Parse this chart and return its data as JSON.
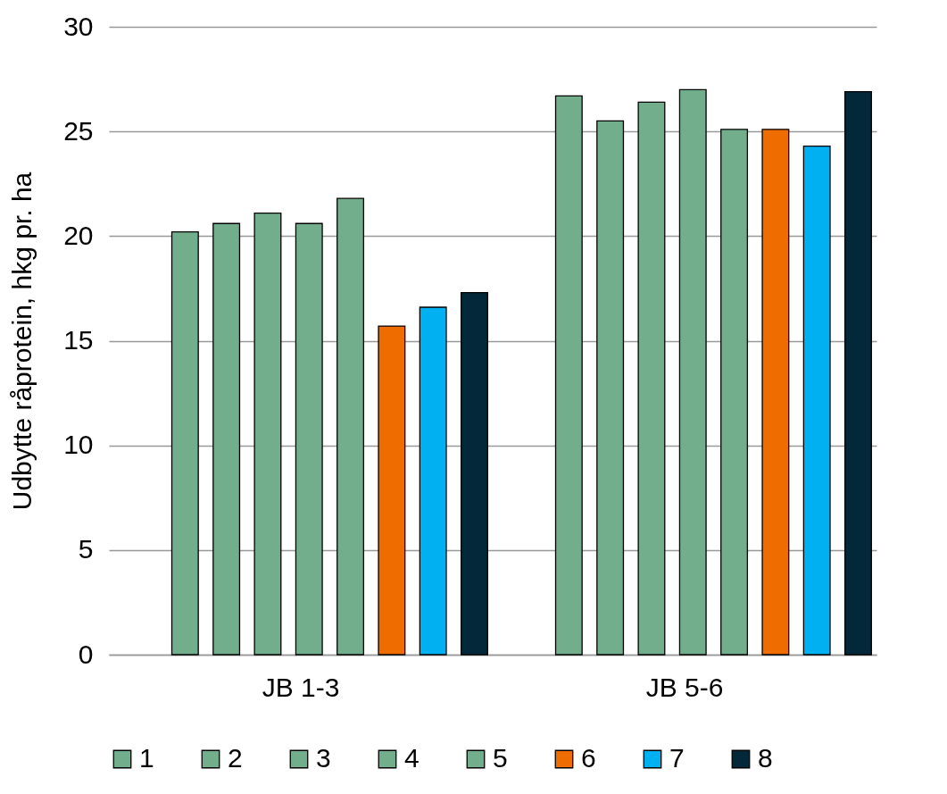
{
  "chart_data": {
    "type": "bar",
    "ylabel": "Udbytte råprotein, hkg pr. ha",
    "categories": [
      "JB 1-3",
      "JB 5-6"
    ],
    "series": [
      {
        "name": "1",
        "color": "#72ae8c",
        "values": [
          20.2,
          26.7
        ]
      },
      {
        "name": "2",
        "color": "#72ae8c",
        "values": [
          20.6,
          25.5
        ]
      },
      {
        "name": "3",
        "color": "#72ae8c",
        "values": [
          21.1,
          26.4
        ]
      },
      {
        "name": "4",
        "color": "#72ae8c",
        "values": [
          20.6,
          27.0
        ]
      },
      {
        "name": "5",
        "color": "#72ae8c",
        "values": [
          21.8,
          25.1
        ]
      },
      {
        "name": "6",
        "color": "#ee6c00",
        "values": [
          15.7,
          25.1
        ]
      },
      {
        "name": "7",
        "color": "#00b0f0",
        "values": [
          16.6,
          24.3
        ]
      },
      {
        "name": "8",
        "color": "#03283a",
        "values": [
          17.3,
          26.9
        ]
      }
    ],
    "ylim": [
      0,
      30
    ],
    "yticks": [
      0,
      5,
      10,
      15,
      20,
      25,
      30
    ],
    "grid": "y",
    "legend": "bottom"
  }
}
